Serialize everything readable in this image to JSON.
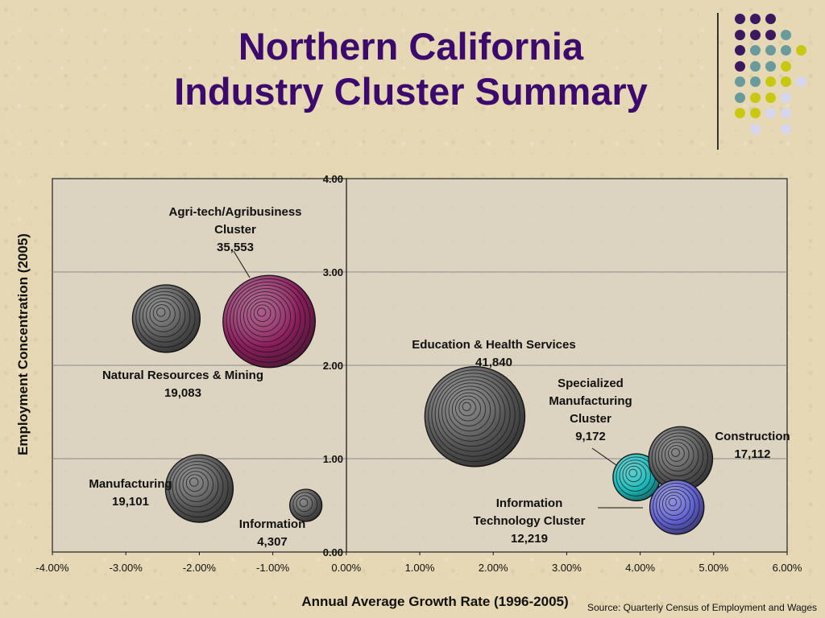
{
  "title_line1": "Northern California",
  "title_line2": "Industry Cluster Summary",
  "source": "Source: Quarterly Census of Employment and Wages",
  "colors": {
    "title": "#3c0a6e",
    "purple": "#3c1860",
    "teal": "#6a9b9c",
    "yellow_green": "#c8c810",
    "lavender": "#d6d6ee"
  },
  "chart_data": {
    "type": "bubble",
    "xlabel": "Annual Average Growth Rate (1996-2005)",
    "ylabel": "Employment Concentration (2005)",
    "xlim": [
      -4.0,
      6.0
    ],
    "ylim": [
      0.0,
      4.0
    ],
    "x_ticks": [
      "-4.00%",
      "-3.00%",
      "-2.00%",
      "-1.00%",
      "0.00%",
      "1.00%",
      "2.00%",
      "3.00%",
      "4.00%",
      "5.00%",
      "6.00%"
    ],
    "y_ticks": [
      "0.00",
      "1.00",
      "2.00",
      "3.00",
      "4.00"
    ],
    "grid": "horizontal",
    "series": [
      {
        "label": "Agri-tech/Agribusiness\nCluster",
        "employment": "35,553",
        "x": -1.05,
        "y": 2.47,
        "size": 35553,
        "color": "#8a1e5c"
      },
      {
        "label": "Natural Resources & Mining",
        "employment": "19,083",
        "x": -2.45,
        "y": 2.5,
        "size": 19083,
        "color": "#555555"
      },
      {
        "label": "Manufacturing",
        "employment": "19,101",
        "x": -2.0,
        "y": 0.68,
        "size": 19101,
        "color": "#555555"
      },
      {
        "label": "Information",
        "employment": "4,307",
        "x": -0.55,
        "y": 0.5,
        "size": 4307,
        "color": "#555555"
      },
      {
        "label": "Education & Health Services",
        "employment": "41,840",
        "x": 1.75,
        "y": 1.45,
        "size": 41840,
        "color": "#555555"
      },
      {
        "label": "Specialized\nManufacturing\nCluster",
        "employment": "9,172",
        "x": 3.95,
        "y": 0.8,
        "size": 9172,
        "color": "#18b8b8"
      },
      {
        "label": "Construction",
        "employment": "17,112",
        "x": 4.55,
        "y": 1.0,
        "size": 17112,
        "color": "#555555"
      },
      {
        "label": "Information\nTechnology Cluster",
        "employment": "12,219",
        "x": 4.5,
        "y": 0.48,
        "size": 12219,
        "color": "#6060d0"
      }
    ]
  }
}
